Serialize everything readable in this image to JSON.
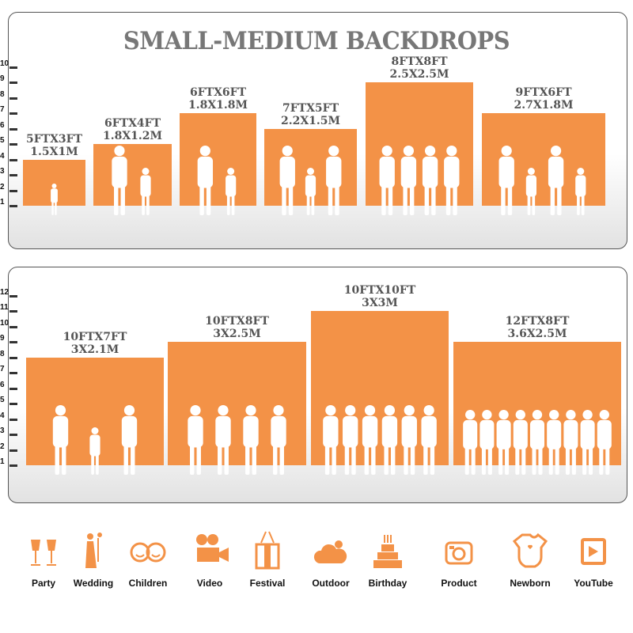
{
  "title": "SMALL-MEDIUM BACKDROPS",
  "accent_color": "#f39247",
  "top_scale": [
    "1",
    "2",
    "3",
    "4",
    "5",
    "6",
    "7",
    "8",
    "9",
    "10"
  ],
  "bottom_scale": [
    "1",
    "2",
    "3",
    "4",
    "5",
    "6",
    "7",
    "8",
    "9",
    "10",
    "11",
    "12"
  ],
  "top_sizes": [
    {
      "ft": "5FTX3FT",
      "m": "1.5X1M",
      "height_ft": 3,
      "figures": 1
    },
    {
      "ft": "6FTX4FT",
      "m": "1.8X1.2M",
      "height_ft": 4,
      "figures": 2
    },
    {
      "ft": "6FTX6FT",
      "m": "1.8X1.8M",
      "height_ft": 6,
      "figures": 2
    },
    {
      "ft": "7FTX5FT",
      "m": "2.2X1.5M",
      "height_ft": 5,
      "figures": 3
    },
    {
      "ft": "8FTX8FT",
      "m": "2.5X2.5M",
      "height_ft": 8,
      "figures": 4
    },
    {
      "ft": "9FTX6FT",
      "m": "2.7X1.8M",
      "height_ft": 6,
      "figures": 4
    }
  ],
  "bottom_sizes": [
    {
      "ft": "10FTX7FT",
      "m": "3X2.1M",
      "height_ft": 7,
      "figures": 3
    },
    {
      "ft": "10FTX8FT",
      "m": "3X2.5M",
      "height_ft": 8,
      "figures": 4
    },
    {
      "ft": "10FTX10FT",
      "m": "3X3M",
      "height_ft": 10,
      "figures": 6
    },
    {
      "ft": "12FTX8FT",
      "m": "3.6X2.5M",
      "height_ft": 8,
      "figures": 9
    }
  ],
  "uses": [
    {
      "label": "Party",
      "icon": "cheers-glasses-icon"
    },
    {
      "label": "Wedding",
      "icon": "wedding-couple-icon"
    },
    {
      "label": "Children",
      "icon": "children-faces-icon"
    },
    {
      "label": "Video",
      "icon": "movie-camera-icon"
    },
    {
      "label": "Festival",
      "icon": "gift-box-icon"
    },
    {
      "label": "Outdoor",
      "icon": "cloud-icon"
    },
    {
      "label": "Birthday",
      "icon": "birthday-cake-icon"
    },
    {
      "label": "Product",
      "icon": "camera-icon"
    },
    {
      "label": "Newborn",
      "icon": "baby-onesie-icon"
    },
    {
      "label": "YouTube",
      "icon": "play-button-icon"
    }
  ]
}
